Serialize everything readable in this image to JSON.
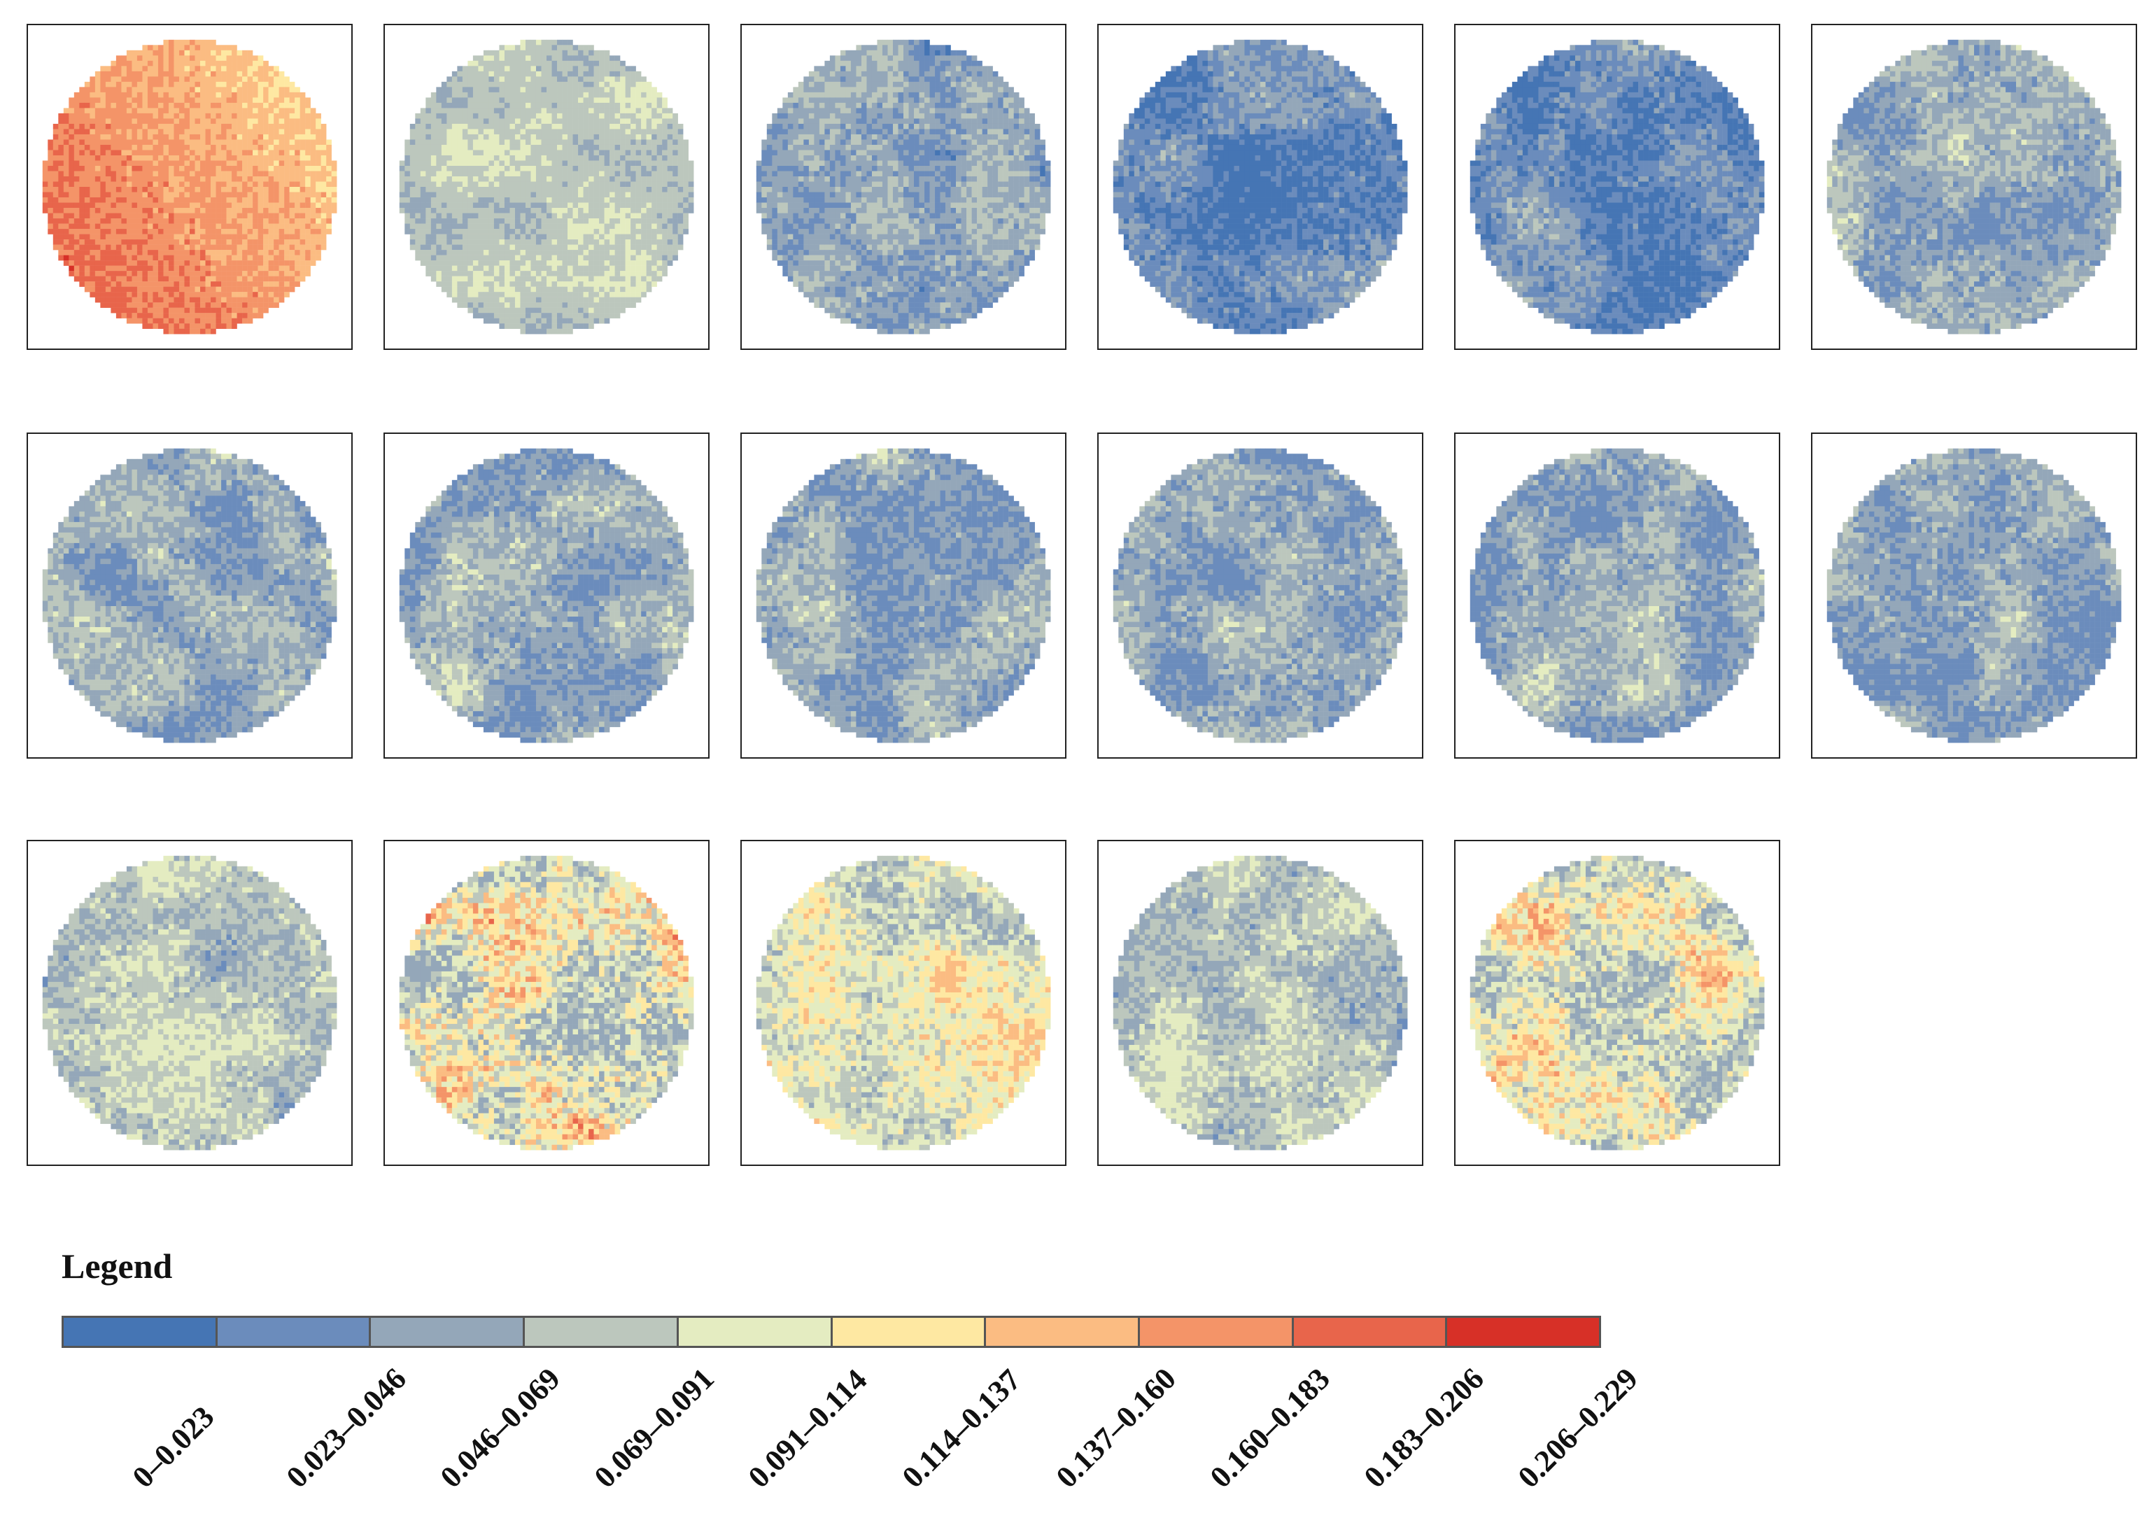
{
  "chart_data": {
    "type": "heatmap",
    "title": "",
    "panel_count": 17,
    "panels": [
      {
        "index": 1,
        "pattern": "gradient",
        "mean_class": 7,
        "low_class": 5,
        "high_class": 9
      },
      {
        "index": 2,
        "pattern": "patchy",
        "mean_class": 3,
        "low_class": 2,
        "high_class": 4
      },
      {
        "index": 3,
        "pattern": "patchy",
        "mean_class": 2,
        "low_class": 0,
        "high_class": 3
      },
      {
        "index": 4,
        "pattern": "patchy",
        "mean_class": 1,
        "low_class": 0,
        "high_class": 3
      },
      {
        "index": 5,
        "pattern": "patchy",
        "mean_class": 1,
        "low_class": 0,
        "high_class": 3
      },
      {
        "index": 6,
        "pattern": "patchy",
        "mean_class": 2,
        "low_class": 1,
        "high_class": 4
      },
      {
        "index": 7,
        "pattern": "patchy",
        "mean_class": 2,
        "low_class": 1,
        "high_class": 4
      },
      {
        "index": 8,
        "pattern": "patchy",
        "mean_class": 2,
        "low_class": 1,
        "high_class": 4
      },
      {
        "index": 9,
        "pattern": "patchy",
        "mean_class": 2,
        "low_class": 1,
        "high_class": 4
      },
      {
        "index": 10,
        "pattern": "patchy",
        "mean_class": 2,
        "low_class": 1,
        "high_class": 4
      },
      {
        "index": 11,
        "pattern": "patchy",
        "mean_class": 2,
        "low_class": 1,
        "high_class": 4
      },
      {
        "index": 12,
        "pattern": "patchy",
        "mean_class": 2,
        "low_class": 1,
        "high_class": 4
      },
      {
        "index": 13,
        "pattern": "patchy",
        "mean_class": 3,
        "low_class": 1,
        "high_class": 4
      },
      {
        "index": 14,
        "pattern": "patchy",
        "mean_class": 4,
        "low_class": 2,
        "high_class": 8
      },
      {
        "index": 15,
        "pattern": "patchy",
        "mean_class": 4,
        "low_class": 2,
        "high_class": 6
      },
      {
        "index": 16,
        "pattern": "patchy",
        "mean_class": 3,
        "low_class": 1,
        "high_class": 4
      },
      {
        "index": 17,
        "pattern": "patchy",
        "mean_class": 4,
        "low_class": 2,
        "high_class": 7
      }
    ],
    "legend": {
      "title": "Legend",
      "classes": [
        {
          "label": "0–0.023",
          "range": [
            0,
            0.023
          ],
          "color": "#4575b4"
        },
        {
          "label": "0.023–0.046",
          "range": [
            0.023,
            0.046
          ],
          "color": "#6b8cbc"
        },
        {
          "label": "0.046–0.069",
          "range": [
            0.046,
            0.069
          ],
          "color": "#94a7b9"
        },
        {
          "label": "0.069–0.091",
          "range": [
            0.069,
            0.091
          ],
          "color": "#bcc7bd"
        },
        {
          "label": "0.091–0.114",
          "range": [
            0.091,
            0.114
          ],
          "color": "#e4ecc1"
        },
        {
          "label": "0.114–0.137",
          "range": [
            0.114,
            0.137
          ],
          "color": "#fee8a2"
        },
        {
          "label": "0.137–0.160",
          "range": [
            0.137,
            0.16
          ],
          "color": "#fbbc82"
        },
        {
          "label": "0.160–0.183",
          "range": [
            0.16,
            0.183
          ],
          "color": "#f49468"
        },
        {
          "label": "0.183–0.206",
          "range": [
            0.183,
            0.206
          ],
          "color": "#e8654b"
        },
        {
          "label": "0.206–0.229",
          "range": [
            0.206,
            0.229
          ],
          "color": "#d73027"
        }
      ]
    }
  }
}
